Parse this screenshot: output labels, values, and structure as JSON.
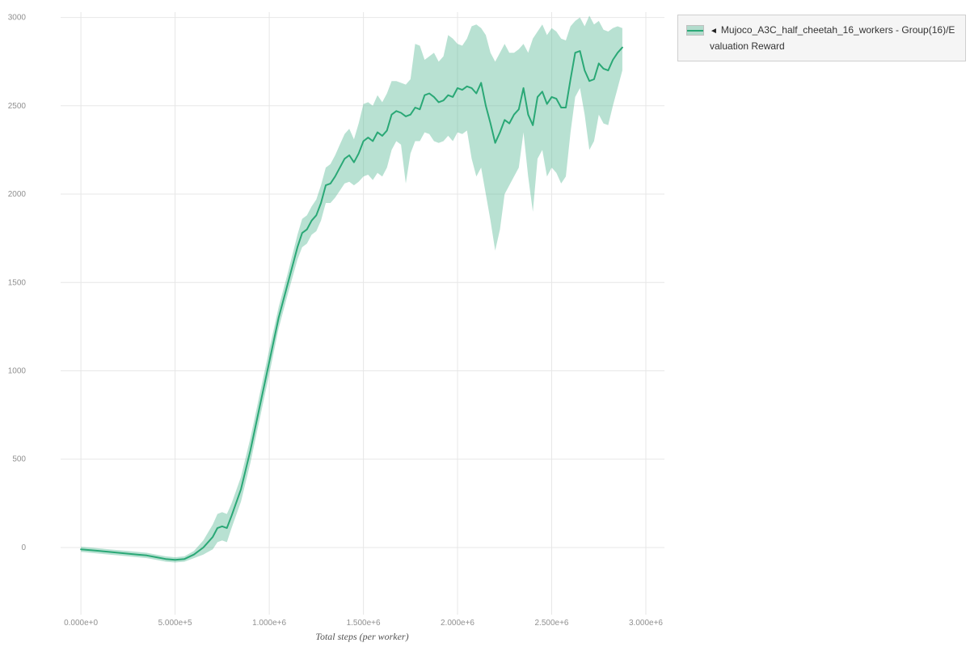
{
  "legend": {
    "collapse_icon": "◄",
    "label": "Mujoco_A3C_half_cheetah_16_workers - Group(16)/Evaluation Reward"
  },
  "chart_data": {
    "type": "line",
    "title": "",
    "xlabel": "Total steps (per worker)",
    "ylabel": "",
    "legend_position": "top-right-outside",
    "grid": true,
    "grid_color": "#e7e7e7",
    "xlim": [
      -258000,
      3100000
    ],
    "ylim": [
      -380,
      3030
    ],
    "x_ticks": [
      {
        "value": 0,
        "label": "0.000e+0"
      },
      {
        "value": 500000,
        "label": "5.000e+5"
      },
      {
        "value": 1000000,
        "label": "1.000e+6"
      },
      {
        "value": 1500000,
        "label": "1.500e+6"
      },
      {
        "value": 2000000,
        "label": "2.000e+6"
      },
      {
        "value": 2500000,
        "label": "2.500e+6"
      },
      {
        "value": 3000000,
        "label": "3.000e+6"
      }
    ],
    "y_ticks": [
      {
        "value": 0,
        "label": "0"
      },
      {
        "value": 500,
        "label": "500"
      },
      {
        "value": 1000,
        "label": "1000"
      },
      {
        "value": 1500,
        "label": "1500"
      },
      {
        "value": 2000,
        "label": "2000"
      },
      {
        "value": 2500,
        "label": "2500"
      },
      {
        "value": 3000,
        "label": "3000"
      }
    ],
    "series": [
      {
        "name": "Mujoco_A3C_half_cheetah_16_workers - Group(16)/Evaluation Reward",
        "line_color": "#2aa876",
        "band_color": "#55b894",
        "band_opacity": 0.42,
        "x": [
          0,
          50000,
          100000,
          150000,
          200000,
          250000,
          300000,
          350000,
          400000,
          450000,
          500000,
          550000,
          600000,
          650000,
          700000,
          725000,
          750000,
          775000,
          800000,
          850000,
          900000,
          950000,
          1000000,
          1050000,
          1100000,
          1150000,
          1175000,
          1200000,
          1225000,
          1250000,
          1275000,
          1300000,
          1325000,
          1350000,
          1375000,
          1400000,
          1425000,
          1450000,
          1475000,
          1500000,
          1525000,
          1550000,
          1575000,
          1600000,
          1625000,
          1650000,
          1675000,
          1700000,
          1725000,
          1750000,
          1775000,
          1800000,
          1825000,
          1850000,
          1875000,
          1900000,
          1925000,
          1950000,
          1975000,
          2000000,
          2025000,
          2050000,
          2075000,
          2100000,
          2125000,
          2150000,
          2175000,
          2200000,
          2225000,
          2250000,
          2275000,
          2300000,
          2325000,
          2350000,
          2375000,
          2400000,
          2425000,
          2450000,
          2475000,
          2500000,
          2525000,
          2550000,
          2575000,
          2600000,
          2625000,
          2650000,
          2675000,
          2700000,
          2725000,
          2750000,
          2775000,
          2800000,
          2825000,
          2850000,
          2875000
        ],
        "mean": [
          -10,
          -15,
          -20,
          -25,
          -30,
          -35,
          -40,
          -45,
          -55,
          -65,
          -70,
          -65,
          -40,
          0,
          60,
          110,
          120,
          110,
          180,
          330,
          550,
          800,
          1050,
          1300,
          1500,
          1700,
          1780,
          1800,
          1850,
          1880,
          1950,
          2050,
          2060,
          2100,
          2150,
          2200,
          2220,
          2180,
          2230,
          2300,
          2320,
          2300,
          2350,
          2330,
          2360,
          2450,
          2470,
          2460,
          2440,
          2450,
          2490,
          2480,
          2560,
          2570,
          2550,
          2520,
          2530,
          2560,
          2550,
          2600,
          2590,
          2610,
          2600,
          2570,
          2630,
          2500,
          2400,
          2290,
          2350,
          2420,
          2400,
          2450,
          2480,
          2600,
          2450,
          2390,
          2550,
          2580,
          2510,
          2550,
          2540,
          2490,
          2490,
          2650,
          2800,
          2810,
          2700,
          2640,
          2650,
          2740,
          2710,
          2700,
          2760,
          2800,
          2830
        ],
        "lower": [
          -25,
          -30,
          -35,
          -40,
          -45,
          -50,
          -55,
          -60,
          -70,
          -80,
          -85,
          -80,
          -60,
          -40,
          -10,
          30,
          40,
          30,
          110,
          260,
          480,
          730,
          980,
          1240,
          1440,
          1630,
          1700,
          1720,
          1770,
          1790,
          1850,
          1950,
          1950,
          1980,
          2020,
          2060,
          2070,
          2050,
          2070,
          2100,
          2110,
          2080,
          2120,
          2100,
          2150,
          2250,
          2300,
          2280,
          2060,
          2230,
          2300,
          2300,
          2350,
          2340,
          2300,
          2290,
          2300,
          2330,
          2300,
          2350,
          2340,
          2360,
          2200,
          2100,
          2150,
          2000,
          1850,
          1680,
          1800,
          2000,
          2050,
          2100,
          2150,
          2350,
          2100,
          1900,
          2200,
          2250,
          2100,
          2150,
          2120,
          2060,
          2100,
          2350,
          2550,
          2600,
          2450,
          2250,
          2300,
          2450,
          2400,
          2390,
          2500,
          2600,
          2700
        ],
        "upper": [
          5,
          0,
          -5,
          -10,
          -15,
          -20,
          -25,
          -30,
          -40,
          -50,
          -55,
          -50,
          -20,
          40,
          130,
          190,
          200,
          190,
          250,
          400,
          620,
          870,
          1120,
          1360,
          1560,
          1770,
          1860,
          1880,
          1930,
          1970,
          2050,
          2150,
          2170,
          2220,
          2280,
          2340,
          2370,
          2310,
          2400,
          2510,
          2520,
          2500,
          2560,
          2520,
          2570,
          2640,
          2640,
          2630,
          2620,
          2650,
          2850,
          2840,
          2760,
          2780,
          2800,
          2750,
          2780,
          2900,
          2880,
          2850,
          2840,
          2880,
          2950,
          2960,
          2940,
          2900,
          2800,
          2750,
          2800,
          2850,
          2800,
          2800,
          2820,
          2850,
          2800,
          2880,
          2920,
          2960,
          2900,
          2940,
          2920,
          2880,
          2870,
          2950,
          2980,
          3000,
          2950,
          3010,
          2960,
          2980,
          2930,
          2920,
          2940,
          2950,
          2940
        ]
      }
    ]
  }
}
